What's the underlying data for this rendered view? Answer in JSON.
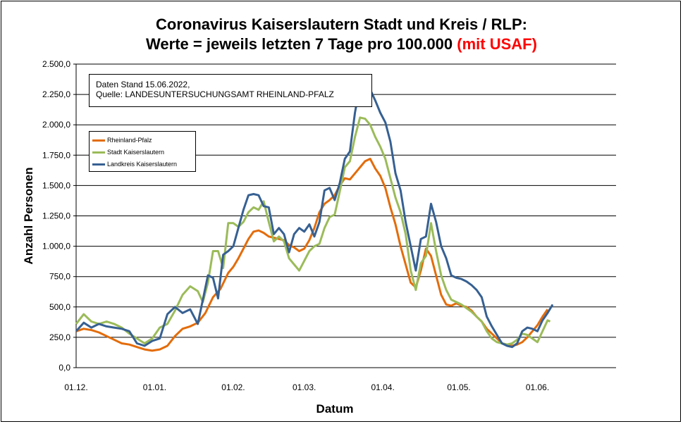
{
  "title": {
    "line1": "Coronavirus Kaiserslautern Stadt und Kreis / RLP:",
    "line2_main": "Werte = jeweils letzten 7 Tage pro 100.000",
    "line2_highlight": "(mit USAF)"
  },
  "info": {
    "line1": "Daten Stand 15.06.2022,",
    "line2": "Quelle: LANDESUNTERSUCHUNGSAMT RHEINLAND-PFALZ"
  },
  "colors": {
    "rlp": "#e36c0a",
    "stadt": "#9bbb59",
    "kreis": "#366092",
    "highlight": "#ff0000"
  },
  "chart_data": {
    "type": "line",
    "xlabel": "Datum",
    "ylabel": "Anzahl Personen",
    "ylim": [
      0,
      2500
    ],
    "y_ticks": [
      "0,0",
      "250,0",
      "500,0",
      "750,0",
      "1.000,0",
      "1.250,0",
      "1.500,0",
      "1.750,0",
      "2.000,0",
      "2.250,0",
      "2.500,0"
    ],
    "x_ticks": [
      {
        "label": "01.12.",
        "day": 0
      },
      {
        "label": "01.01.",
        "day": 31
      },
      {
        "label": "01.02.",
        "day": 62
      },
      {
        "label": "01.03.",
        "day": 90
      },
      {
        "label": "01.04.",
        "day": 121
      },
      {
        "label": "01.05.",
        "day": 151
      },
      {
        "label": "01.06.",
        "day": 182
      }
    ],
    "grid": "horizontal",
    "legend_position": "upper-left",
    "series": [
      {
        "name": "Rheinland-Pfalz",
        "color": "#e36c0a",
        "points": [
          [
            0,
            300
          ],
          [
            3,
            320
          ],
          [
            6,
            310
          ],
          [
            9,
            290
          ],
          [
            12,
            260
          ],
          [
            15,
            230
          ],
          [
            18,
            200
          ],
          [
            21,
            190
          ],
          [
            24,
            170
          ],
          [
            27,
            150
          ],
          [
            30,
            140
          ],
          [
            33,
            150
          ],
          [
            36,
            180
          ],
          [
            39,
            260
          ],
          [
            42,
            320
          ],
          [
            45,
            340
          ],
          [
            48,
            370
          ],
          [
            51,
            450
          ],
          [
            54,
            580
          ],
          [
            57,
            650
          ],
          [
            60,
            780
          ],
          [
            62,
            830
          ],
          [
            64,
            900
          ],
          [
            66,
            980
          ],
          [
            68,
            1060
          ],
          [
            70,
            1120
          ],
          [
            72,
            1130
          ],
          [
            74,
            1110
          ],
          [
            76,
            1080
          ],
          [
            78,
            1070
          ],
          [
            80,
            1060
          ],
          [
            82,
            1050
          ],
          [
            84,
            1010
          ],
          [
            86,
            990
          ],
          [
            88,
            960
          ],
          [
            90,
            980
          ],
          [
            92,
            1050
          ],
          [
            94,
            1150
          ],
          [
            96,
            1280
          ],
          [
            98,
            1350
          ],
          [
            100,
            1380
          ],
          [
            102,
            1420
          ],
          [
            104,
            1500
          ],
          [
            106,
            1560
          ],
          [
            108,
            1550
          ],
          [
            110,
            1600
          ],
          [
            112,
            1650
          ],
          [
            114,
            1700
          ],
          [
            116,
            1720
          ],
          [
            118,
            1640
          ],
          [
            120,
            1580
          ],
          [
            122,
            1480
          ],
          [
            124,
            1320
          ],
          [
            126,
            1180
          ],
          [
            128,
            1000
          ],
          [
            130,
            850
          ],
          [
            132,
            700
          ],
          [
            134,
            660
          ],
          [
            136,
            800
          ],
          [
            138,
            980
          ],
          [
            140,
            920
          ],
          [
            142,
            760
          ],
          [
            144,
            600
          ],
          [
            146,
            520
          ],
          [
            148,
            510
          ],
          [
            150,
            530
          ],
          [
            152,
            510
          ],
          [
            154,
            500
          ],
          [
            156,
            470
          ],
          [
            158,
            420
          ],
          [
            160,
            380
          ],
          [
            162,
            320
          ],
          [
            164,
            280
          ],
          [
            166,
            240
          ],
          [
            168,
            200
          ],
          [
            170,
            190
          ],
          [
            172,
            180
          ],
          [
            174,
            190
          ],
          [
            176,
            210
          ],
          [
            178,
            250
          ],
          [
            180,
            300
          ],
          [
            182,
            350
          ],
          [
            184,
            420
          ],
          [
            186,
            480
          ]
        ]
      },
      {
        "name": "Stadt Kaiserslautern",
        "color": "#9bbb59",
        "points": [
          [
            0,
            360
          ],
          [
            3,
            440
          ],
          [
            6,
            380
          ],
          [
            9,
            360
          ],
          [
            12,
            380
          ],
          [
            15,
            360
          ],
          [
            18,
            330
          ],
          [
            21,
            280
          ],
          [
            24,
            240
          ],
          [
            27,
            200
          ],
          [
            30,
            240
          ],
          [
            33,
            330
          ],
          [
            36,
            360
          ],
          [
            39,
            470
          ],
          [
            42,
            600
          ],
          [
            45,
            670
          ],
          [
            48,
            630
          ],
          [
            50,
            540
          ],
          [
            52,
            700
          ],
          [
            54,
            960
          ],
          [
            56,
            960
          ],
          [
            58,
            820
          ],
          [
            60,
            1190
          ],
          [
            62,
            1190
          ],
          [
            64,
            1160
          ],
          [
            66,
            1200
          ],
          [
            68,
            1280
          ],
          [
            70,
            1320
          ],
          [
            72,
            1300
          ],
          [
            74,
            1370
          ],
          [
            76,
            1200
          ],
          [
            78,
            1040
          ],
          [
            80,
            1080
          ],
          [
            82,
            1040
          ],
          [
            84,
            900
          ],
          [
            86,
            850
          ],
          [
            88,
            800
          ],
          [
            90,
            880
          ],
          [
            92,
            960
          ],
          [
            94,
            1000
          ],
          [
            96,
            1020
          ],
          [
            98,
            1150
          ],
          [
            100,
            1240
          ],
          [
            102,
            1260
          ],
          [
            104,
            1450
          ],
          [
            106,
            1650
          ],
          [
            108,
            1700
          ],
          [
            110,
            1900
          ],
          [
            112,
            2060
          ],
          [
            114,
            2050
          ],
          [
            116,
            2000
          ],
          [
            118,
            1900
          ],
          [
            120,
            1820
          ],
          [
            122,
            1720
          ],
          [
            124,
            1560
          ],
          [
            126,
            1400
          ],
          [
            128,
            1280
          ],
          [
            130,
            1100
          ],
          [
            132,
            800
          ],
          [
            134,
            640
          ],
          [
            136,
            860
          ],
          [
            138,
            920
          ],
          [
            140,
            1190
          ],
          [
            142,
            960
          ],
          [
            144,
            760
          ],
          [
            146,
            640
          ],
          [
            148,
            560
          ],
          [
            150,
            540
          ],
          [
            152,
            520
          ],
          [
            154,
            490
          ],
          [
            156,
            460
          ],
          [
            158,
            420
          ],
          [
            160,
            380
          ],
          [
            162,
            300
          ],
          [
            164,
            240
          ],
          [
            166,
            210
          ],
          [
            168,
            200
          ],
          [
            170,
            190
          ],
          [
            172,
            200
          ],
          [
            174,
            230
          ],
          [
            176,
            280
          ],
          [
            178,
            270
          ],
          [
            180,
            240
          ],
          [
            182,
            210
          ],
          [
            184,
            300
          ],
          [
            186,
            390
          ],
          [
            187,
            380
          ]
        ]
      },
      {
        "name": "Landkreis Kaiserslautern",
        "color": "#366092",
        "points": [
          [
            0,
            300
          ],
          [
            3,
            370
          ],
          [
            6,
            330
          ],
          [
            9,
            360
          ],
          [
            12,
            340
          ],
          [
            15,
            330
          ],
          [
            18,
            320
          ],
          [
            21,
            300
          ],
          [
            24,
            200
          ],
          [
            27,
            180
          ],
          [
            30,
            220
          ],
          [
            33,
            240
          ],
          [
            36,
            440
          ],
          [
            39,
            500
          ],
          [
            42,
            450
          ],
          [
            45,
            480
          ],
          [
            48,
            360
          ],
          [
            50,
            560
          ],
          [
            52,
            760
          ],
          [
            54,
            740
          ],
          [
            56,
            570
          ],
          [
            58,
            930
          ],
          [
            60,
            960
          ],
          [
            62,
            1000
          ],
          [
            64,
            1150
          ],
          [
            66,
            1300
          ],
          [
            68,
            1420
          ],
          [
            70,
            1430
          ],
          [
            72,
            1420
          ],
          [
            74,
            1330
          ],
          [
            76,
            1320
          ],
          [
            78,
            1100
          ],
          [
            80,
            1150
          ],
          [
            82,
            1100
          ],
          [
            84,
            950
          ],
          [
            86,
            1100
          ],
          [
            88,
            1150
          ],
          [
            90,
            1120
          ],
          [
            92,
            1180
          ],
          [
            94,
            1080
          ],
          [
            96,
            1200
          ],
          [
            98,
            1460
          ],
          [
            100,
            1480
          ],
          [
            102,
            1380
          ],
          [
            104,
            1520
          ],
          [
            106,
            1720
          ],
          [
            108,
            1780
          ],
          [
            110,
            2100
          ],
          [
            112,
            2330
          ],
          [
            114,
            2320
          ],
          [
            116,
            2290
          ],
          [
            118,
            2200
          ],
          [
            120,
            2100
          ],
          [
            122,
            2020
          ],
          [
            124,
            1860
          ],
          [
            126,
            1600
          ],
          [
            128,
            1460
          ],
          [
            130,
            1200
          ],
          [
            132,
            1000
          ],
          [
            134,
            800
          ],
          [
            136,
            1060
          ],
          [
            138,
            1080
          ],
          [
            140,
            1350
          ],
          [
            142,
            1200
          ],
          [
            144,
            1000
          ],
          [
            146,
            900
          ],
          [
            148,
            760
          ],
          [
            150,
            740
          ],
          [
            152,
            730
          ],
          [
            154,
            710
          ],
          [
            156,
            680
          ],
          [
            158,
            640
          ],
          [
            160,
            580
          ],
          [
            162,
            420
          ],
          [
            164,
            340
          ],
          [
            166,
            270
          ],
          [
            168,
            200
          ],
          [
            170,
            180
          ],
          [
            172,
            170
          ],
          [
            174,
            200
          ],
          [
            176,
            300
          ],
          [
            178,
            330
          ],
          [
            180,
            320
          ],
          [
            182,
            300
          ],
          [
            184,
            390
          ],
          [
            186,
            450
          ],
          [
            188,
            520
          ]
        ]
      }
    ]
  }
}
